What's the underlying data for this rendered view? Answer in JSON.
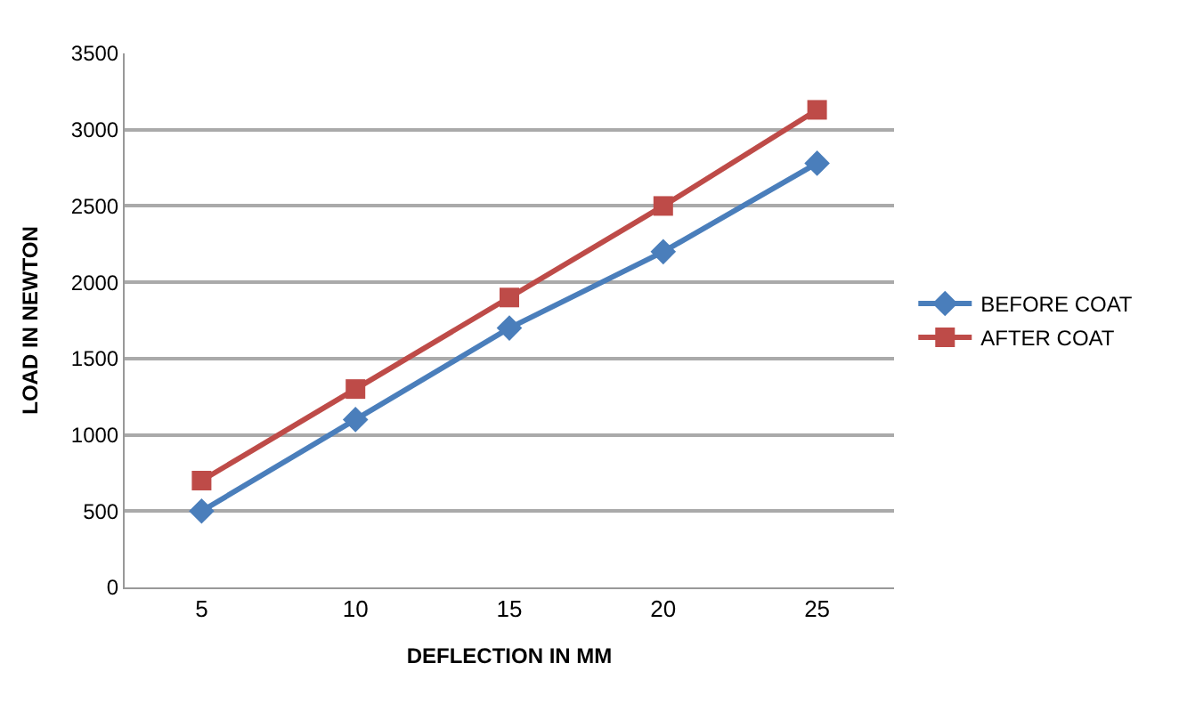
{
  "chart_data": {
    "type": "line",
    "xlabel": "DEFLECTION IN MM",
    "ylabel": "LOAD IN NEWTON",
    "categories": [
      "5",
      "10",
      "15",
      "20",
      "25"
    ],
    "series": [
      {
        "name": "BEFORE COAT",
        "color": "#4a7ebb",
        "marker": "diamond",
        "values": [
          500,
          1100,
          1700,
          2200,
          2780
        ]
      },
      {
        "name": "AFTER COAT",
        "color": "#be4b48",
        "marker": "square",
        "values": [
          700,
          1300,
          1900,
          2500,
          3130
        ]
      }
    ],
    "ylim": [
      0,
      3500
    ],
    "yticks": [
      0,
      500,
      1000,
      1500,
      2000,
      2500,
      3000,
      3500
    ],
    "grid": "y",
    "legend": "right",
    "line_style": "solid"
  }
}
